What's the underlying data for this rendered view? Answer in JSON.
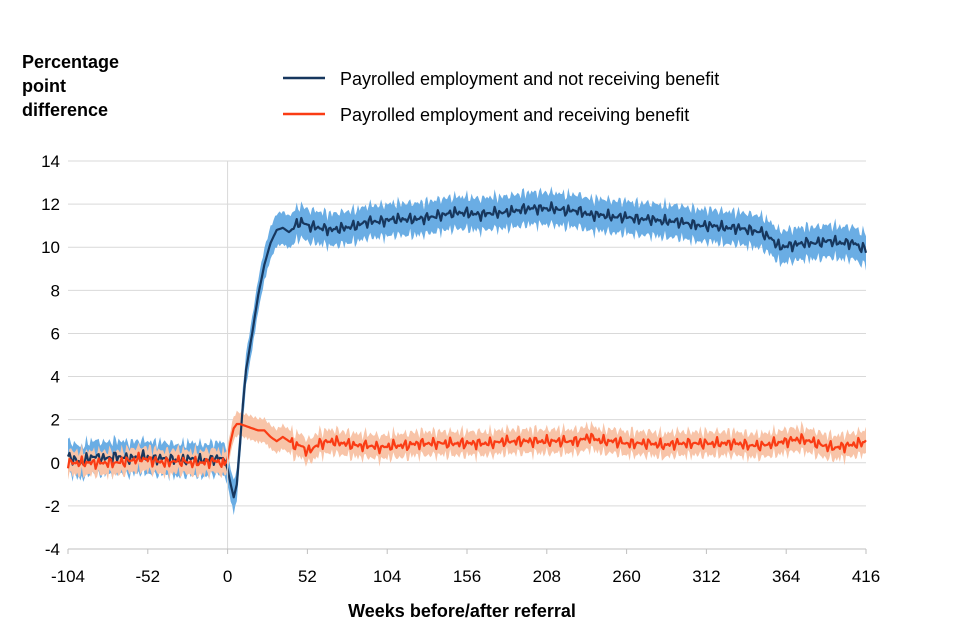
{
  "chart_data": {
    "type": "line",
    "title": "",
    "ylabel_lines": [
      "Percentage",
      "point",
      "difference"
    ],
    "xlabel": "Weeks before/after referral",
    "xlim": [
      -104,
      416
    ],
    "ylim": [
      -4,
      14
    ],
    "x_ticks": [
      -104,
      -52,
      0,
      52,
      104,
      156,
      208,
      260,
      312,
      364,
      416
    ],
    "y_ticks": [
      -4,
      -2,
      0,
      2,
      4,
      6,
      8,
      10,
      12,
      14
    ],
    "grid": "horizontal",
    "legend_position": "top",
    "reference_line_x": 0,
    "series": [
      {
        "name": "Payrolled  employment and not receiving benefit",
        "color": "#17375e",
        "band_color": "#6aade4",
        "band_halfwidth": 0.75,
        "points": [
          [
            -104,
            0.3
          ],
          [
            -96,
            0.0
          ],
          [
            -88,
            0.3
          ],
          [
            -80,
            0.2
          ],
          [
            -72,
            0.3
          ],
          [
            -64,
            0.2
          ],
          [
            -56,
            0.3
          ],
          [
            -48,
            0.2
          ],
          [
            -40,
            0.2
          ],
          [
            -32,
            0.1
          ],
          [
            -24,
            0.2
          ],
          [
            -16,
            0.1
          ],
          [
            -8,
            0.2
          ],
          [
            -4,
            0.2
          ],
          [
            -2,
            0.1
          ],
          [
            0,
            -0.3
          ],
          [
            2,
            -1.0
          ],
          [
            4,
            -1.6
          ],
          [
            6,
            -1.0
          ],
          [
            8,
            0.8
          ],
          [
            10,
            2.7
          ],
          [
            12,
            4.3
          ],
          [
            16,
            6.0
          ],
          [
            20,
            7.8
          ],
          [
            24,
            9.2
          ],
          [
            28,
            10.2
          ],
          [
            32,
            10.8
          ],
          [
            36,
            10.9
          ],
          [
            40,
            10.7
          ],
          [
            44,
            11.0
          ],
          [
            48,
            11.2
          ],
          [
            52,
            11.0
          ],
          [
            60,
            10.9
          ],
          [
            68,
            10.8
          ],
          [
            76,
            10.9
          ],
          [
            84,
            11.0
          ],
          [
            92,
            11.2
          ],
          [
            100,
            11.2
          ],
          [
            108,
            11.3
          ],
          [
            116,
            11.3
          ],
          [
            124,
            11.3
          ],
          [
            132,
            11.4
          ],
          [
            140,
            11.5
          ],
          [
            148,
            11.6
          ],
          [
            156,
            11.6
          ],
          [
            164,
            11.5
          ],
          [
            172,
            11.6
          ],
          [
            180,
            11.6
          ],
          [
            188,
            11.7
          ],
          [
            196,
            11.8
          ],
          [
            204,
            11.8
          ],
          [
            212,
            11.8
          ],
          [
            220,
            11.7
          ],
          [
            228,
            11.7
          ],
          [
            236,
            11.5
          ],
          [
            244,
            11.5
          ],
          [
            252,
            11.4
          ],
          [
            260,
            11.4
          ],
          [
            268,
            11.3
          ],
          [
            276,
            11.3
          ],
          [
            284,
            11.2
          ],
          [
            292,
            11.2
          ],
          [
            300,
            11.1
          ],
          [
            308,
            11.0
          ],
          [
            316,
            11.0
          ],
          [
            324,
            10.9
          ],
          [
            332,
            10.9
          ],
          [
            340,
            10.8
          ],
          [
            348,
            10.7
          ],
          [
            354,
            10.4
          ],
          [
            360,
            10.0
          ],
          [
            368,
            10.1
          ],
          [
            376,
            10.2
          ],
          [
            384,
            10.2
          ],
          [
            392,
            10.3
          ],
          [
            400,
            10.2
          ],
          [
            408,
            10.2
          ],
          [
            412,
            10.0
          ],
          [
            416,
            9.9
          ]
        ]
      },
      {
        "name": "Payrolled employment and receiving benefit",
        "color": "#fa3c14",
        "band_color": "#f8c4a8",
        "band_halfwidth": 0.55,
        "points": [
          [
            -104,
            0.0
          ],
          [
            -96,
            0.0
          ],
          [
            -88,
            0.0
          ],
          [
            -80,
            0.0
          ],
          [
            -72,
            0.0
          ],
          [
            -64,
            0.1
          ],
          [
            -56,
            0.2
          ],
          [
            -48,
            0.1
          ],
          [
            -40,
            0.0
          ],
          [
            -32,
            0.1
          ],
          [
            -24,
            0.0
          ],
          [
            -16,
            0.0
          ],
          [
            -8,
            0.1
          ],
          [
            -4,
            0.0
          ],
          [
            -2,
            -0.1
          ],
          [
            0,
            0.2
          ],
          [
            2,
            1.0
          ],
          [
            4,
            1.6
          ],
          [
            6,
            1.8
          ],
          [
            8,
            1.8
          ],
          [
            12,
            1.7
          ],
          [
            16,
            1.6
          ],
          [
            20,
            1.5
          ],
          [
            24,
            1.5
          ],
          [
            28,
            1.2
          ],
          [
            32,
            1.0
          ],
          [
            36,
            1.2
          ],
          [
            40,
            1.0
          ],
          [
            44,
            0.8
          ],
          [
            48,
            0.8
          ],
          [
            52,
            0.5
          ],
          [
            56,
            0.7
          ],
          [
            60,
            0.9
          ],
          [
            68,
            1.0
          ],
          [
            76,
            0.9
          ],
          [
            84,
            0.8
          ],
          [
            92,
            0.8
          ],
          [
            100,
            0.7
          ],
          [
            108,
            0.8
          ],
          [
            116,
            0.8
          ],
          [
            124,
            0.9
          ],
          [
            132,
            0.9
          ],
          [
            140,
            0.9
          ],
          [
            148,
            0.9
          ],
          [
            156,
            0.9
          ],
          [
            164,
            0.9
          ],
          [
            172,
            0.9
          ],
          [
            180,
            1.0
          ],
          [
            188,
            1.0
          ],
          [
            196,
            1.0
          ],
          [
            204,
            1.0
          ],
          [
            212,
            1.0
          ],
          [
            220,
            1.0
          ],
          [
            228,
            1.0
          ],
          [
            236,
            1.2
          ],
          [
            244,
            1.0
          ],
          [
            252,
            1.0
          ],
          [
            260,
            0.9
          ],
          [
            268,
            0.9
          ],
          [
            276,
            0.9
          ],
          [
            284,
            0.8
          ],
          [
            292,
            0.9
          ],
          [
            300,
            0.9
          ],
          [
            308,
            0.9
          ],
          [
            316,
            0.9
          ],
          [
            324,
            0.9
          ],
          [
            332,
            0.9
          ],
          [
            340,
            0.8
          ],
          [
            348,
            0.8
          ],
          [
            356,
            0.9
          ],
          [
            364,
            1.0
          ],
          [
            372,
            1.1
          ],
          [
            380,
            1.0
          ],
          [
            388,
            0.8
          ],
          [
            396,
            0.7
          ],
          [
            404,
            0.8
          ],
          [
            412,
            0.9
          ],
          [
            416,
            1.0
          ]
        ]
      }
    ]
  }
}
